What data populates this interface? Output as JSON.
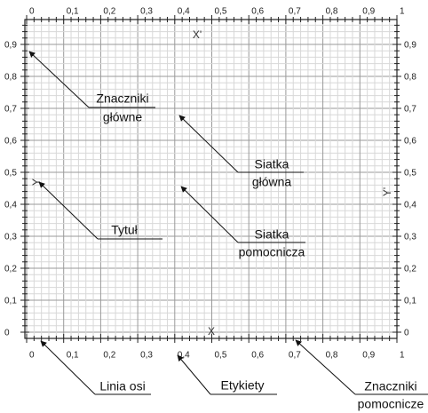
{
  "x_ticks": [
    "0",
    "0,1",
    "0,2",
    "0,3",
    "0,4",
    "0,5",
    "0,6",
    "0,7",
    "0,8",
    "0,9",
    "1"
  ],
  "y_ticks": [
    "0",
    "0,1",
    "0,2",
    "0,3",
    "0,4",
    "0,5",
    "0,6",
    "0,7",
    "0,8",
    "0,9",
    "1"
  ],
  "axis_labels": {
    "x": "X",
    "x2": "X'",
    "y": "Y",
    "y2": "Y'"
  },
  "callouts": [
    {
      "lines": [
        "Znaczniki",
        "główne"
      ]
    },
    {
      "lines": [
        "Siatka",
        "główna"
      ]
    },
    {
      "lines": [
        "Tytuł"
      ]
    },
    {
      "lines": [
        "Siatka",
        "pomocnicza"
      ]
    },
    {
      "lines": [
        "Linia osi"
      ]
    },
    {
      "lines": [
        "Etykiety"
      ]
    },
    {
      "lines": [
        "Znaczniki",
        "pomocnicze"
      ]
    }
  ]
}
